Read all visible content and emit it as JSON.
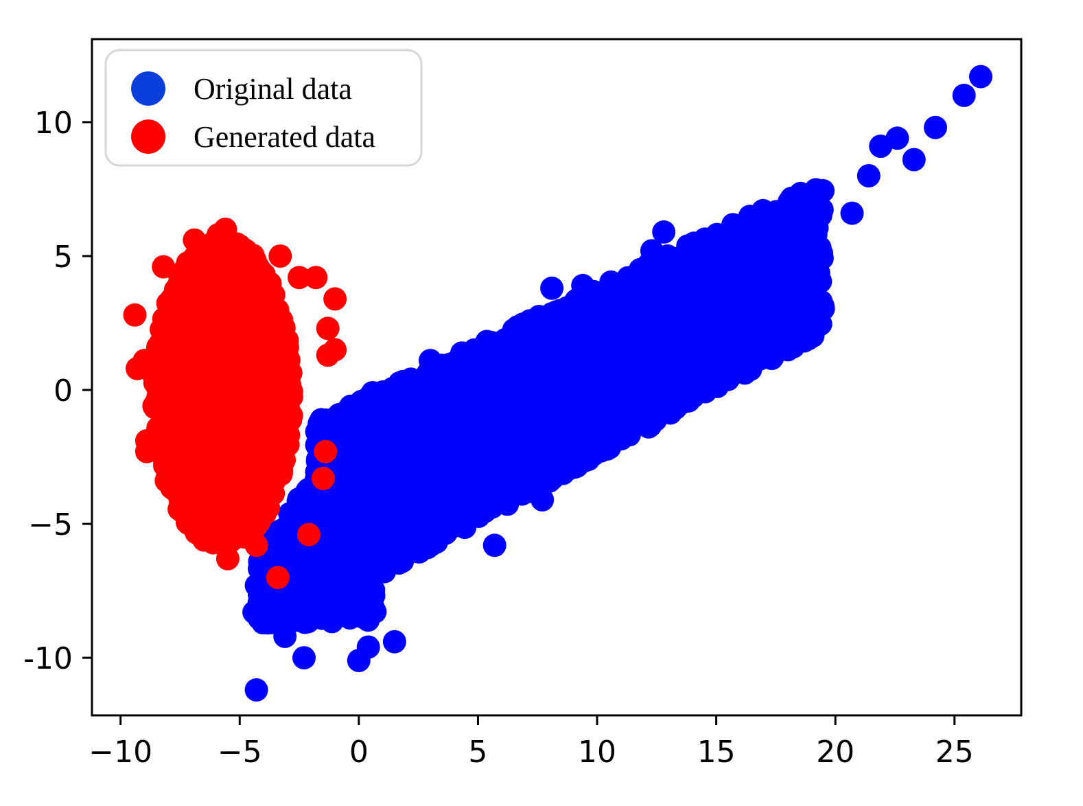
{
  "chart_data": {
    "type": "scatter",
    "xlim": [
      -11.2,
      27.8
    ],
    "ylim": [
      -12.15,
      13.1
    ],
    "x_ticks": [
      {
        "value": -10,
        "label": "−10"
      },
      {
        "value": -5,
        "label": "−5"
      },
      {
        "value": 0,
        "label": "0"
      },
      {
        "value": 5,
        "label": "5"
      },
      {
        "value": 10,
        "label": "10"
      },
      {
        "value": 15,
        "label": "15"
      },
      {
        "value": 20,
        "label": "20"
      },
      {
        "value": 25,
        "label": "25"
      }
    ],
    "y_ticks": [
      {
        "value": 10,
        "label": "10"
      },
      {
        "value": 5,
        "label": "5"
      },
      {
        "value": 0,
        "label": "0"
      },
      {
        "value": -5,
        "label": "−5"
      },
      {
        "value": -10,
        "label": "-10"
      }
    ],
    "grid": false,
    "legend": "top-left",
    "series": [
      {
        "name": "Original data",
        "color": "#0000ff",
        "legend_color": "#0a3fdc",
        "outliers": [
          [
            26.1,
            11.7
          ],
          [
            25.4,
            11.0
          ],
          [
            24.2,
            9.8
          ],
          [
            23.3,
            8.6
          ],
          [
            22.6,
            9.4
          ],
          [
            21.9,
            9.1
          ],
          [
            21.4,
            8.0
          ],
          [
            20.7,
            6.6
          ],
          [
            19.0,
            6.0
          ],
          [
            18.5,
            4.8
          ],
          [
            18.9,
            4.8
          ],
          [
            15.6,
            2.0
          ],
          [
            12.8,
            5.9
          ],
          [
            9.4,
            3.9
          ],
          [
            8.1,
            3.8
          ],
          [
            5.5,
            1.2
          ],
          [
            3.0,
            1.1
          ],
          [
            3.0,
            0.5
          ],
          [
            1.0,
            -0.3
          ],
          [
            2.4,
            -0.2
          ],
          [
            -4.3,
            -11.2
          ],
          [
            -2.3,
            -10.0
          ],
          [
            0.0,
            -10.1
          ],
          [
            0.4,
            -9.6
          ],
          [
            1.5,
            -9.4
          ],
          [
            -3.1,
            -9.2
          ],
          [
            -4.4,
            -8.3
          ],
          [
            -4.3,
            -7.3
          ],
          [
            10.5,
            -0.6
          ],
          [
            9.1,
            -2.3
          ],
          [
            7.7,
            -4.1
          ],
          [
            5.7,
            -5.8
          ],
          [
            8.0,
            -3.4
          ],
          [
            16.8,
            3.6
          ],
          [
            17.3,
            4.3
          ],
          [
            7.9,
            1.9
          ],
          [
            6.4,
            1.6
          ],
          [
            12.3,
            5.2
          ],
          [
            3.9,
            0.2
          ],
          [
            -0.5,
            -1.4
          ]
        ],
        "band": {
          "x0": -1.8,
          "x1": 19.5,
          "y0_top": -1.2,
          "y1_top": 7.8,
          "y0_bot": -8.2,
          "y1_bot": 2.2,
          "rhombus_x_left": -4.2,
          "rhombus_y_left": -7.5
        }
      },
      {
        "name": "Generated data",
        "color": "#ff0000",
        "legend_color": "#ff0000",
        "outliers": [
          [
            -9.3,
            0.8
          ],
          [
            -9.0,
            1.1
          ],
          [
            -9.4,
            2.8
          ],
          [
            -8.9,
            -1.9
          ],
          [
            -8.9,
            -2.3
          ],
          [
            -1.0,
            3.4
          ],
          [
            -1.3,
            2.3
          ],
          [
            -1.0,
            1.5
          ],
          [
            -1.3,
            1.3
          ],
          [
            -1.8,
            4.2
          ],
          [
            -2.1,
            -5.4
          ],
          [
            -3.4,
            -7.0
          ],
          [
            -4.3,
            -5.8
          ],
          [
            -5.5,
            -6.3
          ],
          [
            -6.5,
            -5.6
          ],
          [
            -7.3,
            -4.5
          ],
          [
            -5.6,
            6.0
          ],
          [
            -5.9,
            5.8
          ],
          [
            -6.9,
            5.6
          ],
          [
            -3.3,
            5.0
          ],
          [
            -2.5,
            4.2
          ],
          [
            -1.5,
            -3.3
          ],
          [
            -1.4,
            -2.3
          ],
          [
            -8.2,
            4.6
          ],
          [
            -8.6,
            -0.6
          ]
        ],
        "blob": {
          "cx": -5.7,
          "cy": -0.2,
          "rx": 2.9,
          "ry_top": 5.8,
          "ry_bot": 5.6
        }
      }
    ]
  }
}
